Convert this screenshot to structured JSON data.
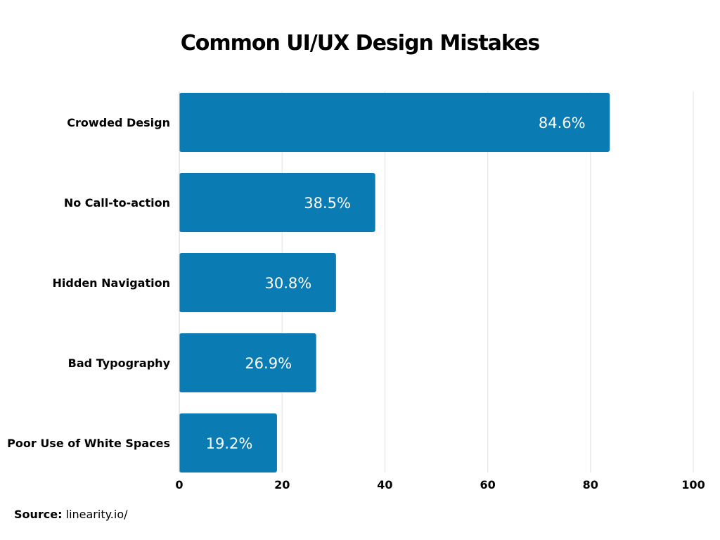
{
  "chart_data": {
    "type": "bar",
    "orientation": "horizontal",
    "title": "Common UI/UX Design Mistakes",
    "categories": [
      "Crowded Design",
      "No Call-to-action",
      "Hidden Navigation",
      "Bad Typography",
      "Poor Use of White Spaces"
    ],
    "values": [
      84.6,
      38.5,
      30.8,
      26.9,
      19.2
    ],
    "value_labels": [
      "84.6%",
      "38.5%",
      "30.8%",
      "26.9%",
      "19.2%"
    ],
    "xlim": [
      0,
      100
    ],
    "xticks": [
      0,
      20,
      40,
      60,
      80,
      100
    ],
    "grid": true,
    "bar_color": "#0a7bb3"
  },
  "source": {
    "label": "Source:",
    "value": "linearity.io/"
  }
}
